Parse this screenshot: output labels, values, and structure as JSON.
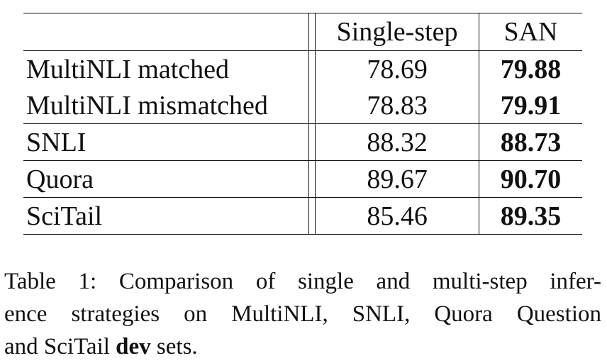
{
  "table": {
    "headers": {
      "name": "",
      "single_step": "Single-step",
      "san": "SAN"
    },
    "rows": [
      {
        "name": "MultiNLI matched",
        "single_step": "78.69",
        "san": "79.88"
      },
      {
        "name": "MultiNLI mismatched",
        "single_step": "78.83",
        "san": "79.91"
      },
      {
        "name": "SNLI",
        "single_step": "88.32",
        "san": "88.73"
      },
      {
        "name": "Quora",
        "single_step": "89.67",
        "san": "90.70"
      },
      {
        "name": "SciTail",
        "single_step": "85.46",
        "san": "89.35"
      }
    ]
  },
  "caption": {
    "line1": "Table 1:  Comparison of single and multi-step infer-",
    "line2": "ence strategies on MultiNLI, SNLI, Quora Question",
    "line3_pre": "and SciTail ",
    "line3_bold": "dev",
    "line3_post": " sets."
  }
}
